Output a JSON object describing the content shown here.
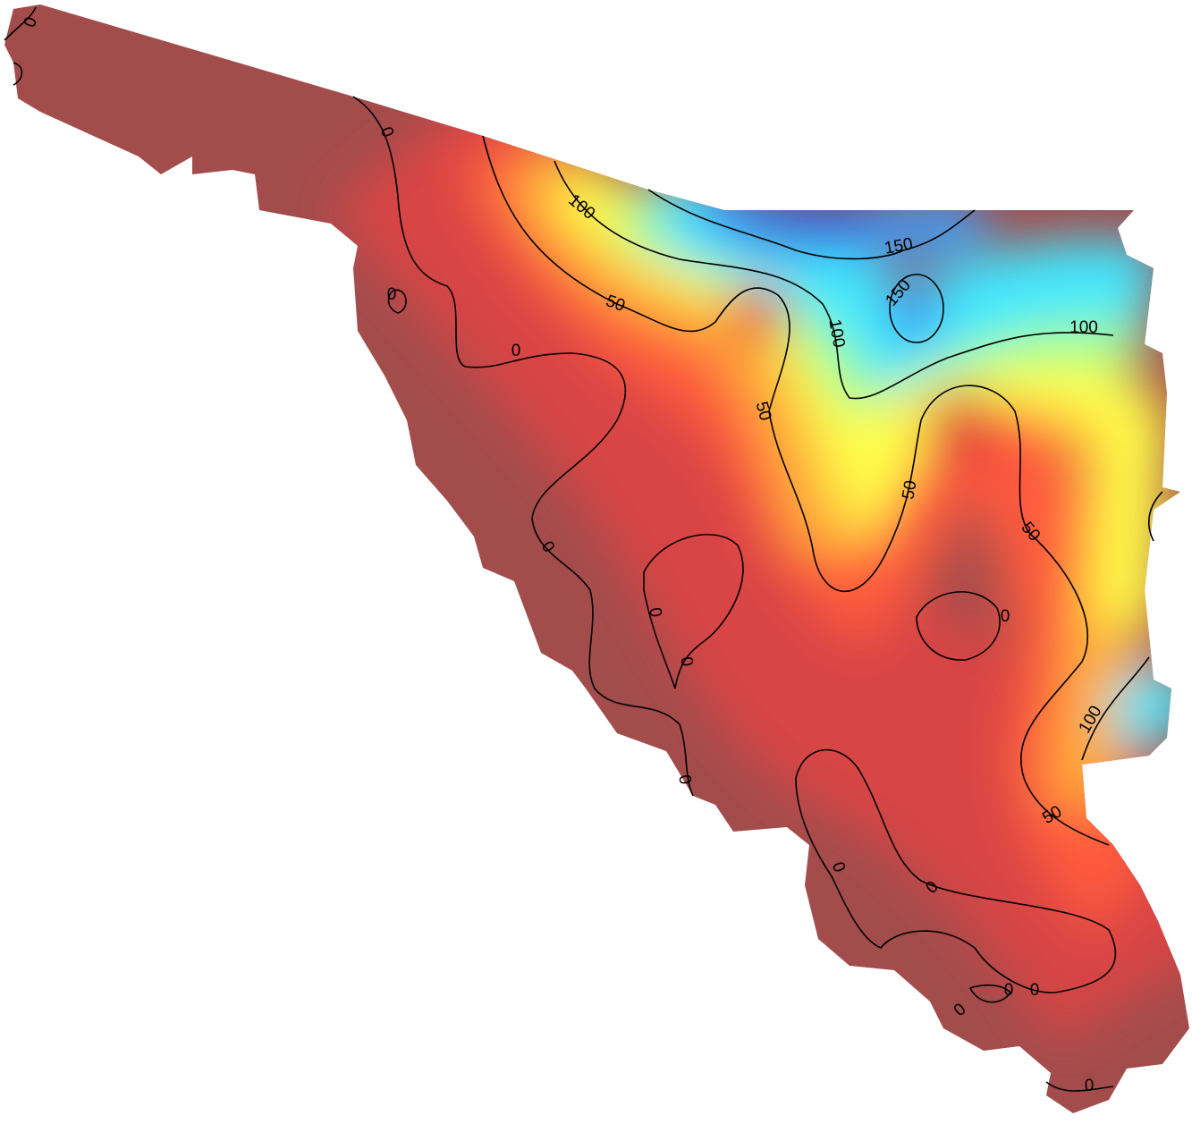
{
  "contour_labels": [
    0,
    0,
    100,
    150,
    150,
    50,
    100,
    0,
    0,
    100,
    50,
    50,
    50,
    0,
    0,
    0,
    0,
    100,
    0,
    50,
    0,
    0,
    0,
    0,
    0,
    0
  ]
}
